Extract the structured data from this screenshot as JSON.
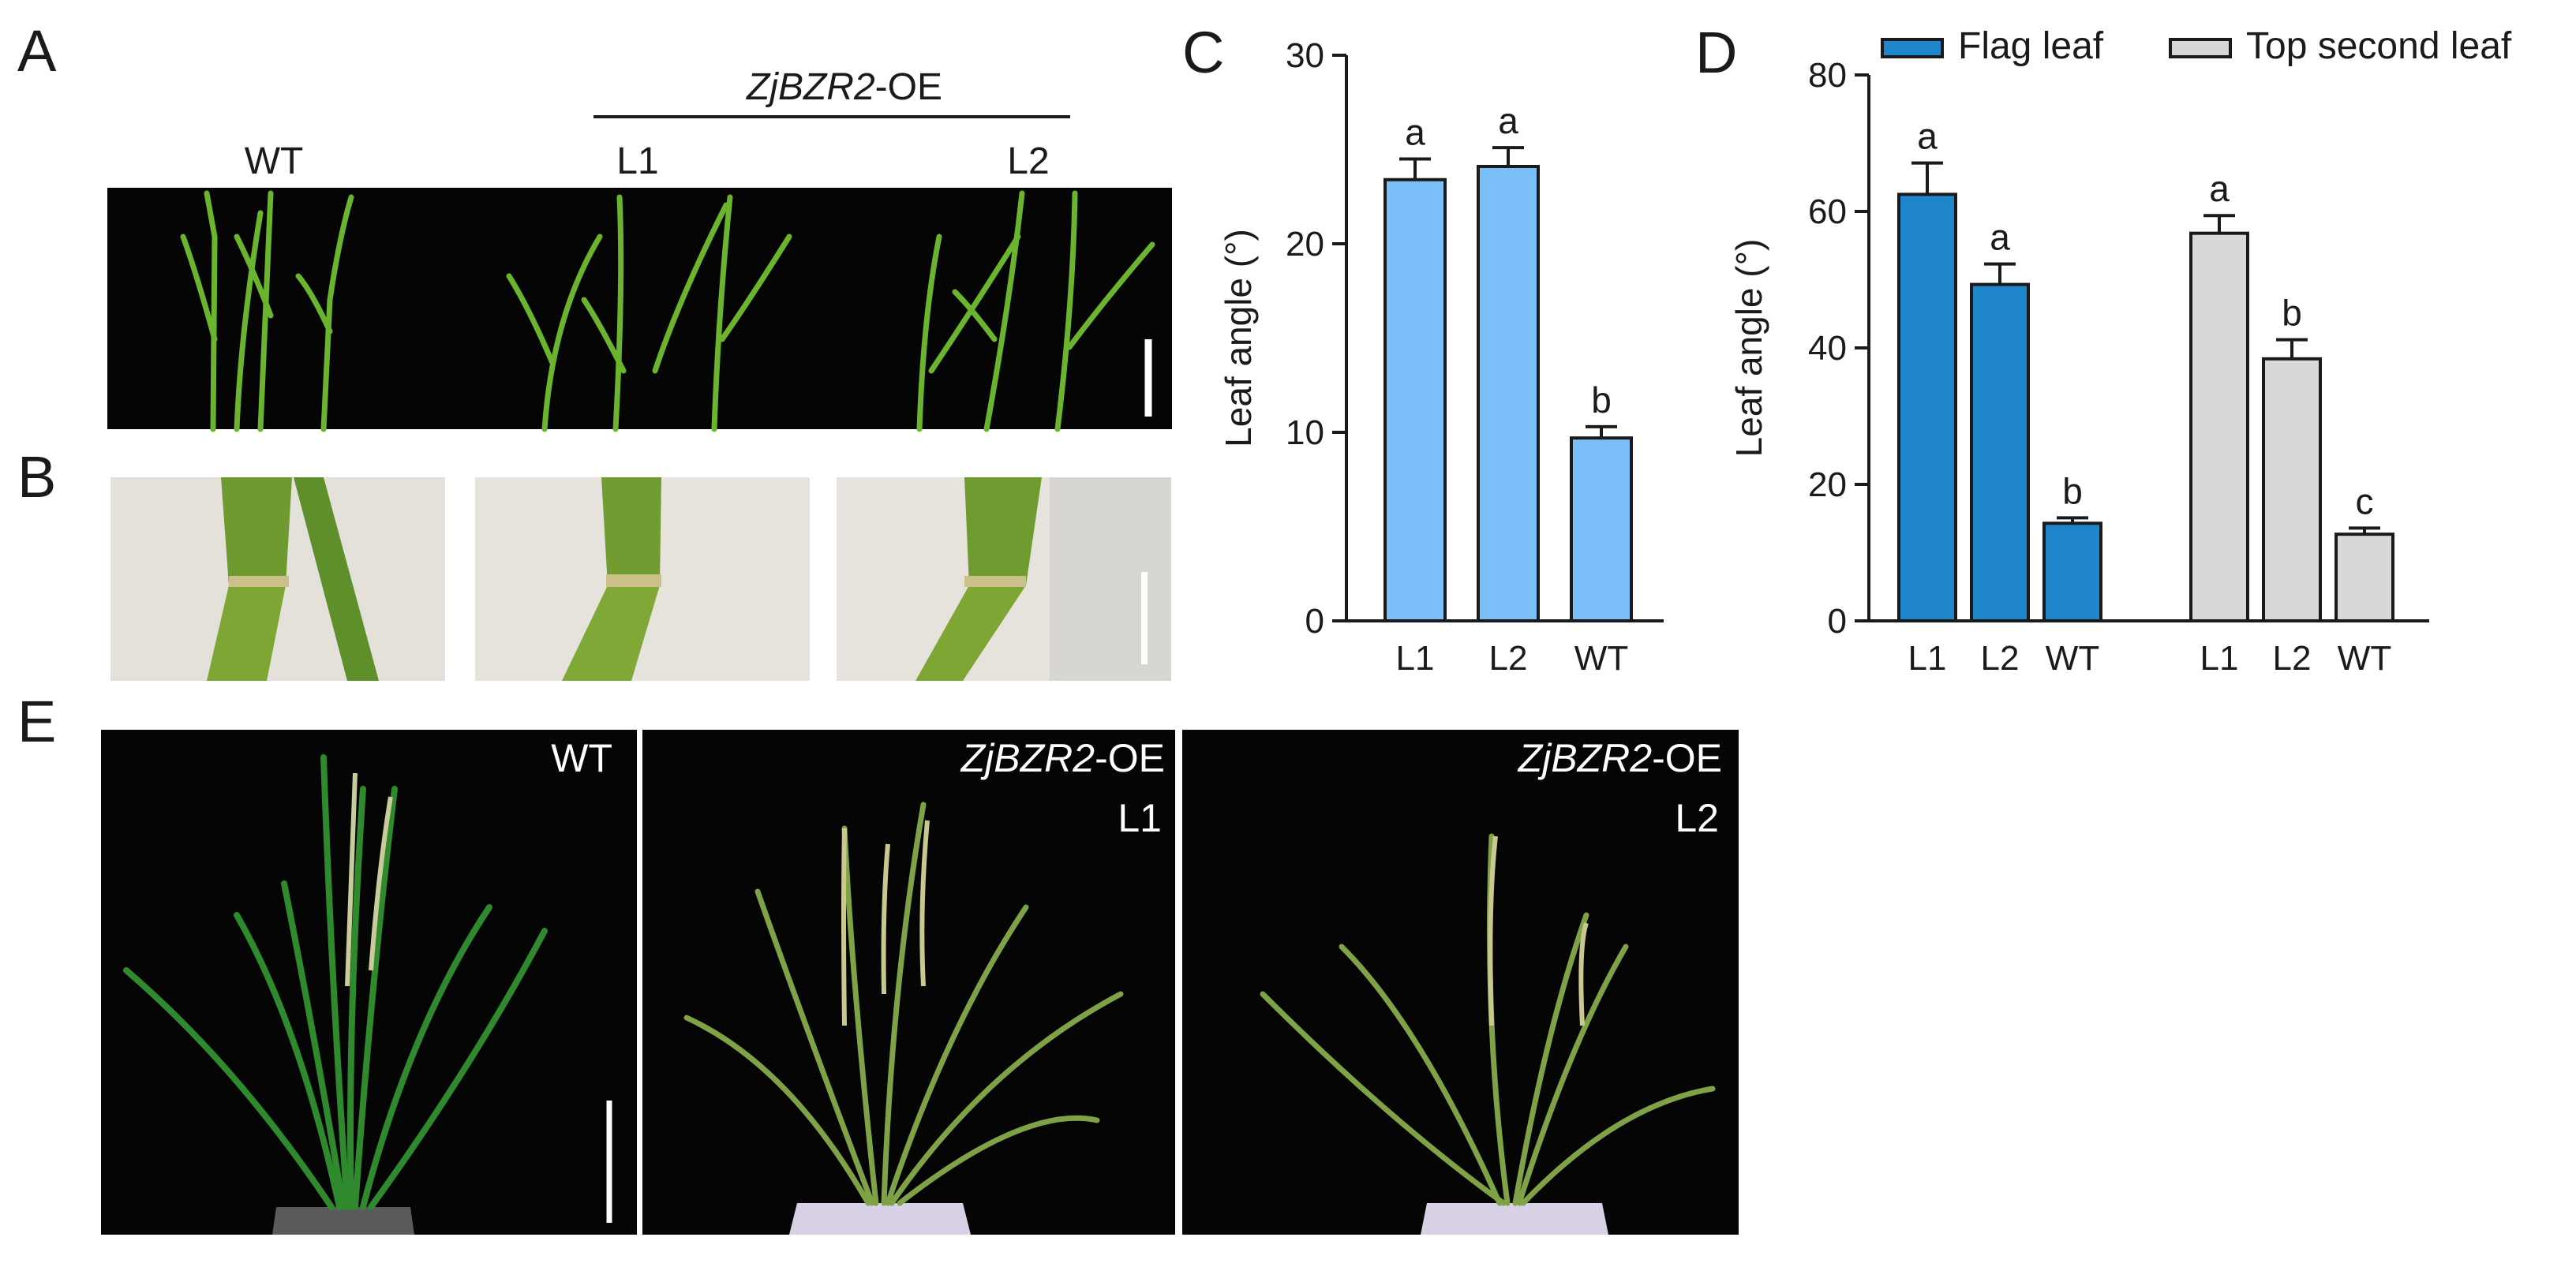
{
  "panels": {
    "A": {
      "letter": "A",
      "group_label_gene": "ZjBZR2",
      "group_label_suffix": "-OE",
      "labels": [
        "WT",
        "L1",
        "L2"
      ]
    },
    "B": {
      "letter": "B"
    },
    "C": {
      "letter": "C"
    },
    "D": {
      "letter": "D"
    },
    "E": {
      "letter": "E",
      "photo_labels": [
        {
          "gene": "",
          "suffix": "WT",
          "line": ""
        },
        {
          "gene": "ZjBZR2",
          "suffix": "-OE",
          "line": "L1"
        },
        {
          "gene": "ZjBZR2",
          "suffix": "-OE",
          "line": "L2"
        }
      ]
    }
  },
  "chart_data": [
    {
      "panel": "C",
      "type": "bar",
      "categories": [
        "L1",
        "L2",
        "WT"
      ],
      "values": [
        23.4,
        24.1,
        9.7
      ],
      "errors": [
        1.1,
        1.0,
        0.6
      ],
      "significance": [
        "a",
        "a",
        "b"
      ],
      "ylabel": "Leaf angle (°)",
      "ylim": [
        0,
        30
      ],
      "yticks": [
        0,
        10,
        20,
        30
      ],
      "color": "#7bbff8"
    },
    {
      "panel": "D",
      "type": "bar",
      "categories": [
        "L1",
        "L2",
        "WT"
      ],
      "ylabel": "Leaf angle (°)",
      "ylim": [
        0,
        80
      ],
      "yticks": [
        0,
        20,
        40,
        60,
        80
      ],
      "legend_position": "top",
      "series": [
        {
          "name": "Flag leaf",
          "values": [
            62.5,
            49.3,
            14.3
          ],
          "errors": [
            4.6,
            3.0,
            0.8
          ],
          "significance": [
            "a",
            "a",
            "b"
          ],
          "color": "#1f86cc"
        },
        {
          "name": "Top second leaf",
          "values": [
            56.8,
            38.4,
            12.7
          ],
          "errors": [
            2.6,
            2.8,
            0.9
          ],
          "significance": [
            "a",
            "b",
            "c"
          ],
          "color": "#d8d8d8"
        }
      ]
    }
  ],
  "colors": {
    "photo_bg": "#050505",
    "stem_light_bg": "#e6e3dc",
    "leaf_green": "#66b12e",
    "leaf_dark": "#2f7f2a",
    "straw": "#bfc08a"
  }
}
